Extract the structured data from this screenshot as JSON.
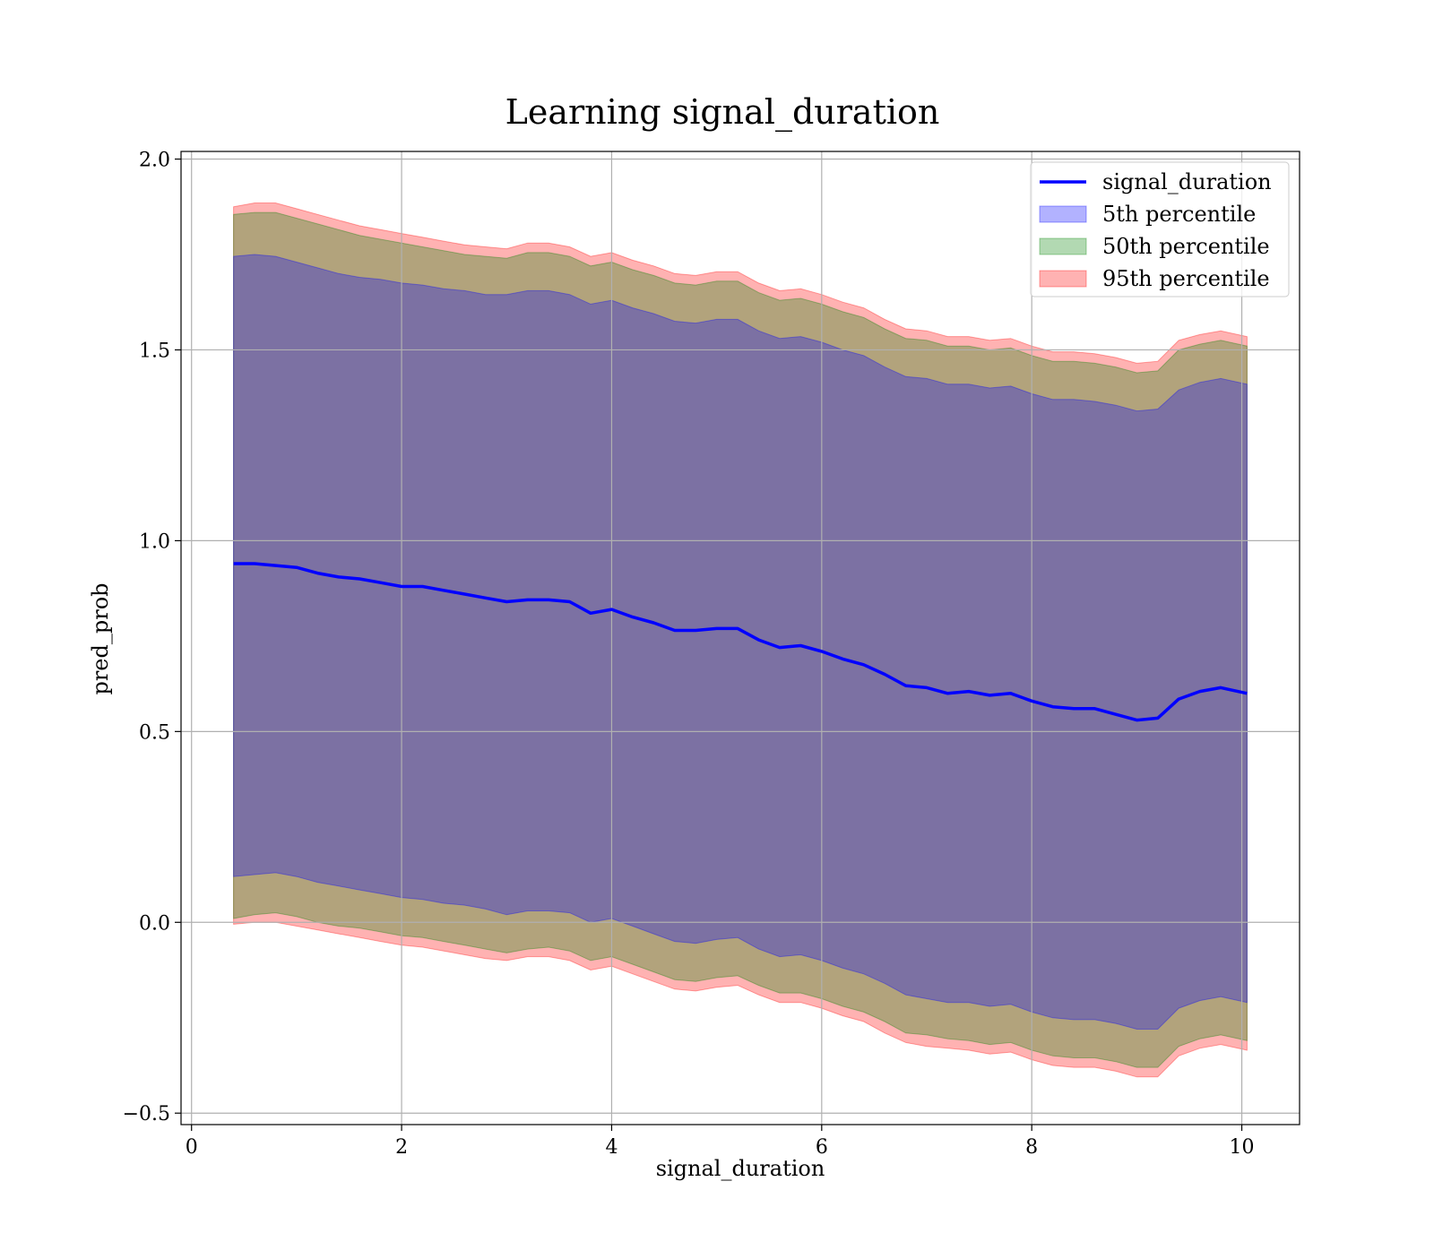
{
  "chart_data": {
    "type": "area",
    "title": "Learning signal_duration",
    "xlabel": "signal_duration",
    "ylabel": "pred_prob",
    "xlim": [
      -0.1,
      10.55
    ],
    "ylim": [
      -0.53,
      2.02
    ],
    "xticks": [
      0,
      2,
      4,
      6,
      8,
      10
    ],
    "yticks": [
      -0.5,
      0.0,
      0.5,
      1.0,
      1.5,
      2.0
    ],
    "xtick_labels": [
      "0",
      "2",
      "4",
      "6",
      "8",
      "10"
    ],
    "ytick_labels": [
      "−0.5",
      "0.0",
      "0.5",
      "1.0",
      "1.5",
      "2.0"
    ],
    "grid": true,
    "legend_position": "top-right",
    "series": [
      {
        "name": "signal_duration",
        "kind": "line",
        "color": "#0000ff",
        "x": [
          0.4,
          0.6,
          0.8,
          1.0,
          1.2,
          1.4,
          1.6,
          1.8,
          2.0,
          2.2,
          2.4,
          2.6,
          2.8,
          3.0,
          3.2,
          3.4,
          3.6,
          3.8,
          4.0,
          4.2,
          4.4,
          4.6,
          4.8,
          5.0,
          5.2,
          5.4,
          5.6,
          5.8,
          6.0,
          6.2,
          6.4,
          6.6,
          6.8,
          7.0,
          7.2,
          7.4,
          7.6,
          7.8,
          8.0,
          8.2,
          8.4,
          8.6,
          8.8,
          9.0,
          9.2,
          9.4,
          9.6,
          9.8,
          10.05
        ],
        "values": [
          0.94,
          0.94,
          0.935,
          0.93,
          0.915,
          0.905,
          0.9,
          0.89,
          0.88,
          0.88,
          0.87,
          0.86,
          0.85,
          0.84,
          0.845,
          0.845,
          0.84,
          0.81,
          0.82,
          0.8,
          0.785,
          0.765,
          0.765,
          0.77,
          0.77,
          0.74,
          0.72,
          0.725,
          0.71,
          0.69,
          0.675,
          0.65,
          0.62,
          0.615,
          0.6,
          0.605,
          0.595,
          0.6,
          0.58,
          0.565,
          0.56,
          0.56,
          0.545,
          0.53,
          0.535,
          0.585,
          0.605,
          0.615,
          0.6
        ]
      },
      {
        "name": "5th percentile",
        "kind": "band",
        "color": "#0000ff",
        "x": [
          0.4,
          0.6,
          0.8,
          1.0,
          1.2,
          1.4,
          1.6,
          1.8,
          2.0,
          2.2,
          2.4,
          2.6,
          2.8,
          3.0,
          3.2,
          3.4,
          3.6,
          3.8,
          4.0,
          4.2,
          4.4,
          4.6,
          4.8,
          5.0,
          5.2,
          5.4,
          5.6,
          5.8,
          6.0,
          6.2,
          6.4,
          6.6,
          6.8,
          7.0,
          7.2,
          7.4,
          7.6,
          7.8,
          8.0,
          8.2,
          8.4,
          8.6,
          8.8,
          9.0,
          9.2,
          9.4,
          9.6,
          9.8,
          10.05
        ],
        "lower": [
          0.12,
          0.125,
          0.13,
          0.12,
          0.105,
          0.095,
          0.085,
          0.075,
          0.065,
          0.06,
          0.05,
          0.045,
          0.035,
          0.02,
          0.03,
          0.03,
          0.025,
          0.0,
          0.01,
          -0.01,
          -0.03,
          -0.05,
          -0.055,
          -0.045,
          -0.04,
          -0.07,
          -0.09,
          -0.085,
          -0.1,
          -0.12,
          -0.135,
          -0.16,
          -0.19,
          -0.2,
          -0.21,
          -0.21,
          -0.22,
          -0.215,
          -0.235,
          -0.25,
          -0.255,
          -0.255,
          -0.265,
          -0.28,
          -0.28,
          -0.225,
          -0.205,
          -0.195,
          -0.21
        ],
        "upper": [
          1.745,
          1.75,
          1.745,
          1.73,
          1.715,
          1.7,
          1.69,
          1.685,
          1.675,
          1.67,
          1.66,
          1.655,
          1.645,
          1.645,
          1.655,
          1.655,
          1.645,
          1.62,
          1.63,
          1.61,
          1.595,
          1.575,
          1.57,
          1.58,
          1.58,
          1.55,
          1.53,
          1.535,
          1.52,
          1.5,
          1.485,
          1.455,
          1.43,
          1.425,
          1.41,
          1.41,
          1.4,
          1.405,
          1.385,
          1.37,
          1.37,
          1.365,
          1.355,
          1.34,
          1.345,
          1.395,
          1.415,
          1.425,
          1.41
        ]
      },
      {
        "name": "50th percentile",
        "kind": "band",
        "color": "#008000",
        "x": [
          0.4,
          0.6,
          0.8,
          1.0,
          1.2,
          1.4,
          1.6,
          1.8,
          2.0,
          2.2,
          2.4,
          2.6,
          2.8,
          3.0,
          3.2,
          3.4,
          3.6,
          3.8,
          4.0,
          4.2,
          4.4,
          4.6,
          4.8,
          5.0,
          5.2,
          5.4,
          5.6,
          5.8,
          6.0,
          6.2,
          6.4,
          6.6,
          6.8,
          7.0,
          7.2,
          7.4,
          7.6,
          7.8,
          8.0,
          8.2,
          8.4,
          8.6,
          8.8,
          9.0,
          9.2,
          9.4,
          9.6,
          9.8,
          10.05
        ],
        "lower": [
          0.01,
          0.02,
          0.025,
          0.015,
          0.0,
          -0.01,
          -0.015,
          -0.025,
          -0.035,
          -0.04,
          -0.05,
          -0.06,
          -0.07,
          -0.08,
          -0.07,
          -0.065,
          -0.075,
          -0.1,
          -0.09,
          -0.11,
          -0.13,
          -0.15,
          -0.155,
          -0.145,
          -0.14,
          -0.165,
          -0.185,
          -0.185,
          -0.2,
          -0.22,
          -0.235,
          -0.26,
          -0.29,
          -0.295,
          -0.305,
          -0.31,
          -0.32,
          -0.315,
          -0.335,
          -0.35,
          -0.355,
          -0.355,
          -0.365,
          -0.38,
          -0.38,
          -0.325,
          -0.305,
          -0.295,
          -0.31
        ],
        "upper": [
          1.855,
          1.86,
          1.86,
          1.845,
          1.83,
          1.815,
          1.8,
          1.79,
          1.78,
          1.77,
          1.76,
          1.75,
          1.745,
          1.74,
          1.755,
          1.755,
          1.745,
          1.72,
          1.73,
          1.71,
          1.695,
          1.675,
          1.67,
          1.68,
          1.68,
          1.65,
          1.63,
          1.635,
          1.62,
          1.6,
          1.585,
          1.555,
          1.53,
          1.525,
          1.51,
          1.51,
          1.5,
          1.505,
          1.485,
          1.47,
          1.47,
          1.465,
          1.455,
          1.44,
          1.445,
          1.5,
          1.515,
          1.525,
          1.51
        ]
      },
      {
        "name": "95th percentile",
        "kind": "band",
        "color": "#ff0000",
        "x": [
          0.4,
          0.6,
          0.8,
          1.0,
          1.2,
          1.4,
          1.6,
          1.8,
          2.0,
          2.2,
          2.4,
          2.6,
          2.8,
          3.0,
          3.2,
          3.4,
          3.6,
          3.8,
          4.0,
          4.2,
          4.4,
          4.6,
          4.8,
          5.0,
          5.2,
          5.4,
          5.6,
          5.8,
          6.0,
          6.2,
          6.4,
          6.6,
          6.8,
          7.0,
          7.2,
          7.4,
          7.6,
          7.8,
          8.0,
          8.2,
          8.4,
          8.6,
          8.8,
          9.0,
          9.2,
          9.4,
          9.6,
          9.8,
          10.05
        ],
        "lower": [
          -0.005,
          0.0,
          0.0,
          -0.01,
          -0.02,
          -0.03,
          -0.04,
          -0.05,
          -0.06,
          -0.065,
          -0.075,
          -0.085,
          -0.095,
          -0.1,
          -0.09,
          -0.09,
          -0.1,
          -0.125,
          -0.115,
          -0.135,
          -0.155,
          -0.175,
          -0.18,
          -0.17,
          -0.165,
          -0.19,
          -0.21,
          -0.21,
          -0.225,
          -0.245,
          -0.26,
          -0.29,
          -0.315,
          -0.325,
          -0.33,
          -0.335,
          -0.345,
          -0.34,
          -0.36,
          -0.375,
          -0.38,
          -0.38,
          -0.39,
          -0.405,
          -0.405,
          -0.35,
          -0.33,
          -0.32,
          -0.335
        ],
        "upper": [
          1.875,
          1.885,
          1.885,
          1.87,
          1.855,
          1.84,
          1.825,
          1.815,
          1.805,
          1.795,
          1.785,
          1.775,
          1.77,
          1.765,
          1.78,
          1.78,
          1.77,
          1.745,
          1.755,
          1.735,
          1.72,
          1.7,
          1.695,
          1.705,
          1.705,
          1.675,
          1.655,
          1.66,
          1.645,
          1.625,
          1.61,
          1.58,
          1.555,
          1.55,
          1.535,
          1.535,
          1.525,
          1.53,
          1.51,
          1.495,
          1.495,
          1.49,
          1.48,
          1.465,
          1.47,
          1.525,
          1.54,
          1.55,
          1.535
        ]
      }
    ]
  }
}
